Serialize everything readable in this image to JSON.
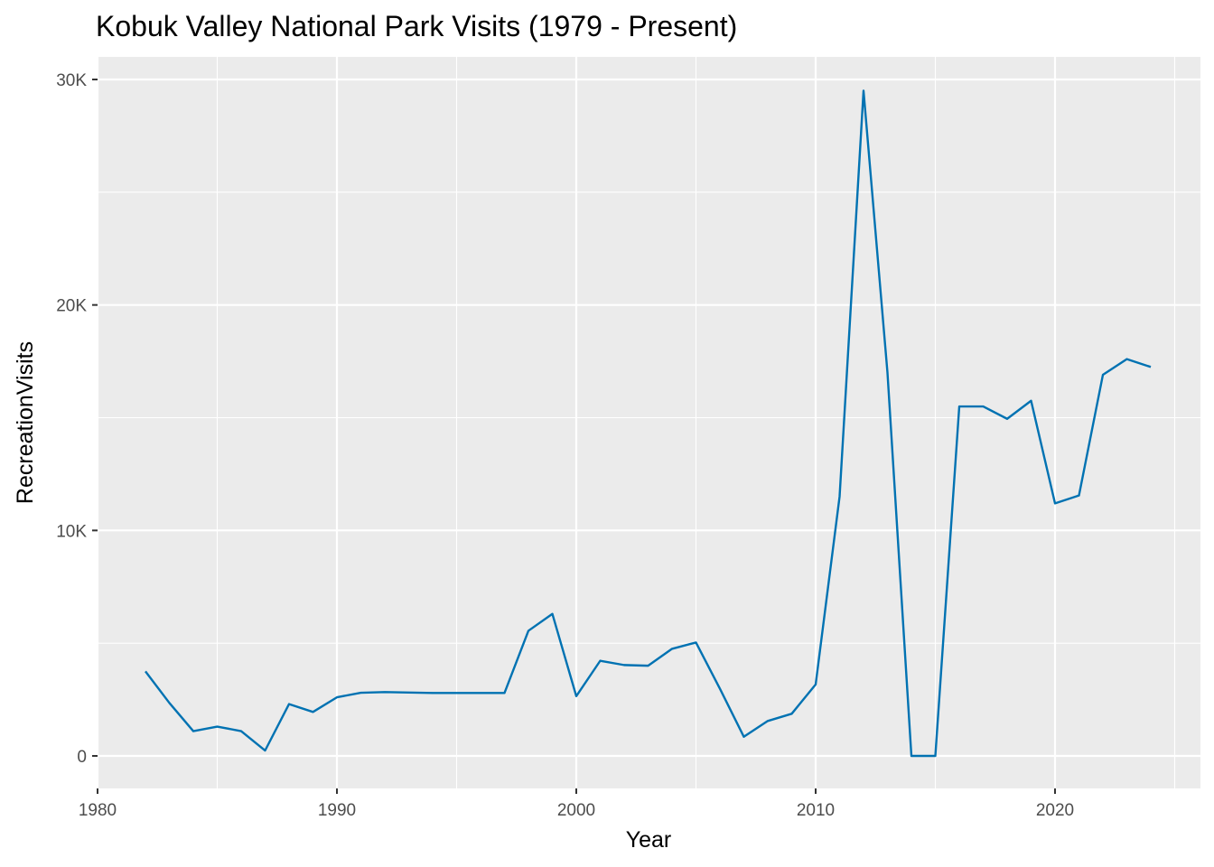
{
  "chart_data": {
    "type": "line",
    "title": "Kobuk Valley National Park Visits (1979 - Present)",
    "xlabel": "Year",
    "ylabel": "RecreationVisits",
    "xlim": [
      1980,
      2025
    ],
    "ylim": [
      0,
      30000
    ],
    "x_ticks": [
      1980,
      1990,
      2000,
      2010,
      2020
    ],
    "x_tick_labels": [
      "1980",
      "1990",
      "2000",
      "2010",
      "2020"
    ],
    "y_ticks": [
      0,
      10000,
      20000,
      30000
    ],
    "y_tick_labels": [
      "0",
      "10K",
      "20K",
      "30K"
    ],
    "grid": true,
    "legend": "none",
    "line_color": "#0072B2",
    "panel_background": "#EBEBEB",
    "series": [
      {
        "x": [
          1982,
          1983,
          1984,
          1985,
          1986,
          1987,
          1988,
          1989,
          1990,
          1991,
          1992,
          1993,
          1994,
          1995,
          1996,
          1997,
          1998,
          1999,
          2000,
          2001,
          2002,
          2003,
          2004,
          2005,
          2006,
          2007,
          2008,
          2009,
          2010,
          2011,
          2012,
          2013,
          2014,
          2015,
          2016,
          2017,
          2018,
          2019,
          2020,
          2021,
          2022,
          2023,
          2024
        ],
        "values": [
          3750,
          2350,
          1100,
          1300,
          1100,
          240,
          2300,
          1950,
          2600,
          2800,
          2830,
          2810,
          2790,
          2790,
          2790,
          2790,
          5550,
          6300,
          2650,
          4220,
          4030,
          4000,
          4750,
          5030,
          2980,
          850,
          1550,
          1870,
          3170,
          11500,
          29500,
          17000,
          0,
          0,
          15500,
          15500,
          14950,
          15750,
          11200,
          11550,
          16900,
          17600,
          17250
        ]
      }
    ]
  }
}
